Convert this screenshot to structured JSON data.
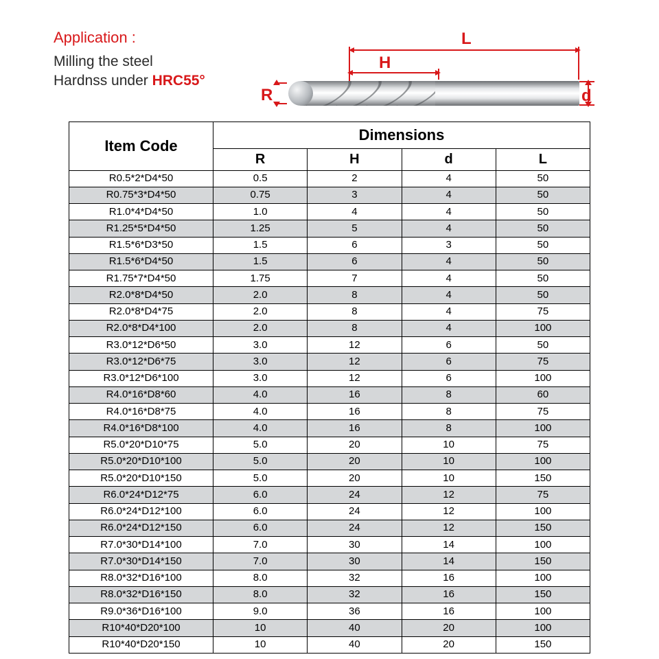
{
  "header": {
    "application_label": "Application :",
    "line1": "Milling the steel",
    "line2_prefix": "Hardnss under ",
    "hrc": "HRC55°"
  },
  "diagram": {
    "labels": {
      "L": "L",
      "H": "H",
      "R": "R",
      "d": "d"
    },
    "colors": {
      "accent": "#d8181a"
    }
  },
  "table": {
    "header_item": "Item Code",
    "header_dimensions": "Dimensions",
    "columns": [
      "R",
      "H",
      "d",
      "L"
    ],
    "rows": [
      {
        "code": "R0.5*2*D4*50",
        "R": "0.5",
        "H": "2",
        "d": "4",
        "L": "50"
      },
      {
        "code": "R0.75*3*D4*50",
        "R": "0.75",
        "H": "3",
        "d": "4",
        "L": "50"
      },
      {
        "code": "R1.0*4*D4*50",
        "R": "1.0",
        "H": "4",
        "d": "4",
        "L": "50"
      },
      {
        "code": "R1.25*5*D4*50",
        "R": "1.25",
        "H": "5",
        "d": "4",
        "L": "50"
      },
      {
        "code": "R1.5*6*D3*50",
        "R": "1.5",
        "H": "6",
        "d": "3",
        "L": "50"
      },
      {
        "code": "R1.5*6*D4*50",
        "R": "1.5",
        "H": "6",
        "d": "4",
        "L": "50"
      },
      {
        "code": "R1.75*7*D4*50",
        "R": "1.75",
        "H": "7",
        "d": "4",
        "L": "50"
      },
      {
        "code": "R2.0*8*D4*50",
        "R": "2.0",
        "H": "8",
        "d": "4",
        "L": "50"
      },
      {
        "code": "R2.0*8*D4*75",
        "R": "2.0",
        "H": "8",
        "d": "4",
        "L": "75"
      },
      {
        "code": "R2.0*8*D4*100",
        "R": "2.0",
        "H": "8",
        "d": "4",
        "L": "100"
      },
      {
        "code": "R3.0*12*D6*50",
        "R": "3.0",
        "H": "12",
        "d": "6",
        "L": "50"
      },
      {
        "code": "R3.0*12*D6*75",
        "R": "3.0",
        "H": "12",
        "d": "6",
        "L": "75"
      },
      {
        "code": "R3.0*12*D6*100",
        "R": "3.0",
        "H": "12",
        "d": "6",
        "L": "100"
      },
      {
        "code": "R4.0*16*D8*60",
        "R": "4.0",
        "H": "16",
        "d": "8",
        "L": "60"
      },
      {
        "code": "R4.0*16*D8*75",
        "R": "4.0",
        "H": "16",
        "d": "8",
        "L": "75"
      },
      {
        "code": "R4.0*16*D8*100",
        "R": "4.0",
        "H": "16",
        "d": "8",
        "L": "100"
      },
      {
        "code": "R5.0*20*D10*75",
        "R": "5.0",
        "H": "20",
        "d": "10",
        "L": "75"
      },
      {
        "code": "R5.0*20*D10*100",
        "R": "5.0",
        "H": "20",
        "d": "10",
        "L": "100"
      },
      {
        "code": "R5.0*20*D10*150",
        "R": "5.0",
        "H": "20",
        "d": "10",
        "L": "150"
      },
      {
        "code": "R6.0*24*D12*75",
        "R": "6.0",
        "H": "24",
        "d": "12",
        "L": "75"
      },
      {
        "code": "R6.0*24*D12*100",
        "R": "6.0",
        "H": "24",
        "d": "12",
        "L": "100"
      },
      {
        "code": "R6.0*24*D12*150",
        "R": "6.0",
        "H": "24",
        "d": "12",
        "L": "150"
      },
      {
        "code": "R7.0*30*D14*100",
        "R": "7.0",
        "H": "30",
        "d": "14",
        "L": "100"
      },
      {
        "code": "R7.0*30*D14*150",
        "R": "7.0",
        "H": "30",
        "d": "14",
        "L": "150"
      },
      {
        "code": "R8.0*32*D16*100",
        "R": "8.0",
        "H": "32",
        "d": "16",
        "L": "100"
      },
      {
        "code": "R8.0*32*D16*150",
        "R": "8.0",
        "H": "32",
        "d": "16",
        "L": "150"
      },
      {
        "code": "R9.0*36*D16*100",
        "R": "9.0",
        "H": "36",
        "d": "16",
        "L": "100"
      },
      {
        "code": "R10*40*D20*100",
        "R": "10",
        "H": "40",
        "d": "20",
        "L": "100"
      },
      {
        "code": "R10*40*D20*150",
        "R": "10",
        "H": "40",
        "d": "20",
        "L": "150"
      }
    ]
  },
  "styling": {
    "row_alt_bg": "#d5d7d9",
    "text_color": "#2a2a2a",
    "border_color": "#000000",
    "font_family": "Arial"
  }
}
